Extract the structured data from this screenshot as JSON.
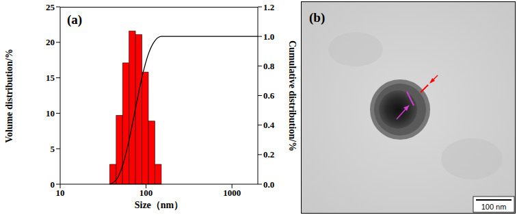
{
  "chart_data": {
    "type": "histogram",
    "title": "(a)",
    "x_label": "Size（nm）",
    "y_label": "Volume distribution/%",
    "y2_label": "Cumulative distribution/%",
    "bins": [
      37.7,
      44.8,
      53.3,
      63.3,
      75.3,
      89.5,
      106.4,
      126.6,
      150.5
    ],
    "values": [
      2.8,
      9.7,
      17.1,
      21.6,
      21.1,
      15.8,
      8.9,
      2.8
    ],
    "color": "#ff0000",
    "series": [
      {
        "type": "line",
        "axis": "y2",
        "color": "#000000",
        "x": [
          37.7,
          44.8,
          53.3,
          63.3,
          75.3,
          89.5,
          106.4,
          126.6,
          150.5,
          2000
        ],
        "values": [
          0,
          0.028,
          0.125,
          0.296,
          0.512,
          0.723,
          0.881,
          0.97,
          1.0,
          1.0
        ]
      }
    ],
    "log": "x",
    "xlim": [
      10,
      2000
    ],
    "xticks": [
      10,
      100,
      1000
    ],
    "ylim": [
      0,
      25
    ],
    "yticks": [
      0,
      5,
      10,
      15,
      20,
      25
    ],
    "y2lim": [
      0,
      1.2
    ],
    "y2ticks": [
      {
        "value": 0,
        "label": "0.0"
      },
      {
        "value": 0.2,
        "label": "0.2"
      },
      {
        "value": 0.4,
        "label": "0.4"
      },
      {
        "value": 0.6,
        "label": "0.6"
      },
      {
        "value": 0.8,
        "label": "0.8"
      },
      {
        "value": 1.0,
        "label": "1.0"
      },
      {
        "value": 1.2,
        "label": "1.2"
      }
    ],
    "grid": false
  },
  "image": {
    "label": "(b)",
    "scale_bar": "100 nm"
  }
}
